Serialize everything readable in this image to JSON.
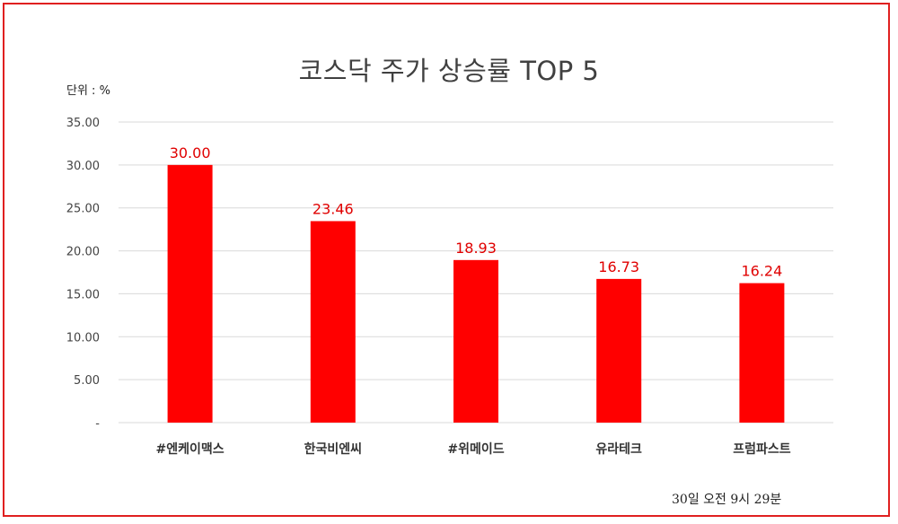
{
  "colors": {
    "bar": "#ff0000",
    "data_label": "#e00000",
    "frame": "#e02020",
    "grid": "#d9d9d9"
  },
  "chart_data": {
    "type": "bar",
    "title": "코스닥 주가 상승률 TOP 5",
    "unit_label": "단위 : %",
    "footnote": "30일  오전 9시 29분",
    "categories": [
      "#엔케이맥스",
      "한국비엔씨",
      "#위메이드",
      "유라테크",
      "프럼파스트"
    ],
    "values": [
      30.0,
      23.46,
      18.93,
      16.73,
      16.24
    ],
    "data_labels": [
      "30.00",
      "23.46",
      "18.93",
      "16.73",
      "16.24"
    ],
    "y_ticks": [
      "-",
      "5.00",
      "10.00",
      "15.00",
      "20.00",
      "25.00",
      "30.00",
      "35.00"
    ],
    "ylim": [
      0,
      35
    ],
    "grid": true,
    "legend": "none"
  }
}
